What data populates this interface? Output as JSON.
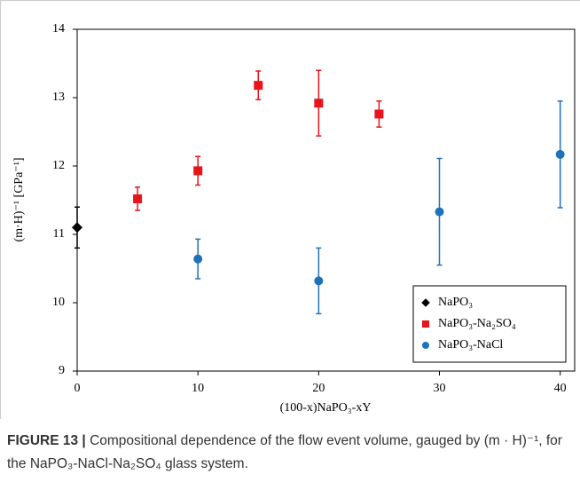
{
  "chart_data": {
    "type": "scatter",
    "x_label": "(100-x)NaPO₃-xY",
    "y_label": "(m·H)⁻¹ [GPa⁻¹]",
    "xlim": [
      0,
      41.2
    ],
    "xticks": [
      0,
      10,
      20,
      30,
      40
    ],
    "ylim": [
      9,
      14
    ],
    "yticks": [
      9,
      10,
      11,
      12,
      13,
      14
    ],
    "legend": "lower right",
    "series": [
      {
        "name": "NaPO₃",
        "color": "#000000",
        "marker": "diamond",
        "x": [
          0
        ],
        "values": [
          11.1
        ],
        "errors": [
          0.3
        ]
      },
      {
        "name": "NaPO₃-Na₂SO₄",
        "color": "#e8141b",
        "marker": "square",
        "x": [
          5,
          10,
          15,
          20,
          25
        ],
        "values": [
          11.52,
          11.93,
          13.18,
          12.92,
          12.76
        ],
        "errors": [
          0.17,
          0.21,
          0.21,
          0.48,
          0.19
        ]
      },
      {
        "name": "NaPO₃-NaCl",
        "color": "#1f72b8",
        "marker": "circle",
        "x": [
          10,
          20,
          30,
          40
        ],
        "values": [
          10.64,
          10.32,
          11.33,
          12.17
        ],
        "errors": [
          0.29,
          0.48,
          0.78,
          0.78
        ]
      }
    ]
  },
  "caption": {
    "label": "FIGURE 13 |",
    "text": "Compositional dependence of the flow event volume, gauged by (m · H)⁻¹, for the NaPO₃-NaCl-Na₂SO₄ glass system."
  }
}
